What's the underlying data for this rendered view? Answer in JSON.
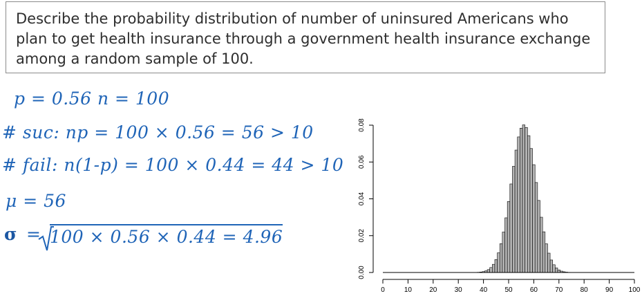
{
  "question": "Describe the probability distribution of number of uninsured Americans who plan to get health insurance through a government health insurance exchange among a random sample of 100.",
  "notes": {
    "line1": "p = 0.56     n = 100",
    "line2": "# suc: np = 100 × 0.56 = 56 > 10",
    "line3": "# fail: n(1-p) = 100 × 0.44 = 44 > 10",
    "line4": "μ = 56",
    "line5_symbol": "σ",
    "line5_eq": "=",
    "line5_expr": "100 × 0.56 × 0.44 = 4.96"
  },
  "chart_data": {
    "type": "bar",
    "x_ticks": [
      "0",
      "10",
      "20",
      "30",
      "40",
      "50",
      "60",
      "70",
      "80",
      "90",
      "100"
    ],
    "y_ticks": [
      "0.00",
      "0.02",
      "0.04",
      "0.06",
      "0.08"
    ],
    "xlim": [
      0,
      100
    ],
    "ylim": [
      0,
      0.08
    ],
    "distribution": "binomial",
    "n": 100,
    "p": 0.56,
    "bar_color": "#b4b4b4",
    "edge_color": "#000000"
  }
}
